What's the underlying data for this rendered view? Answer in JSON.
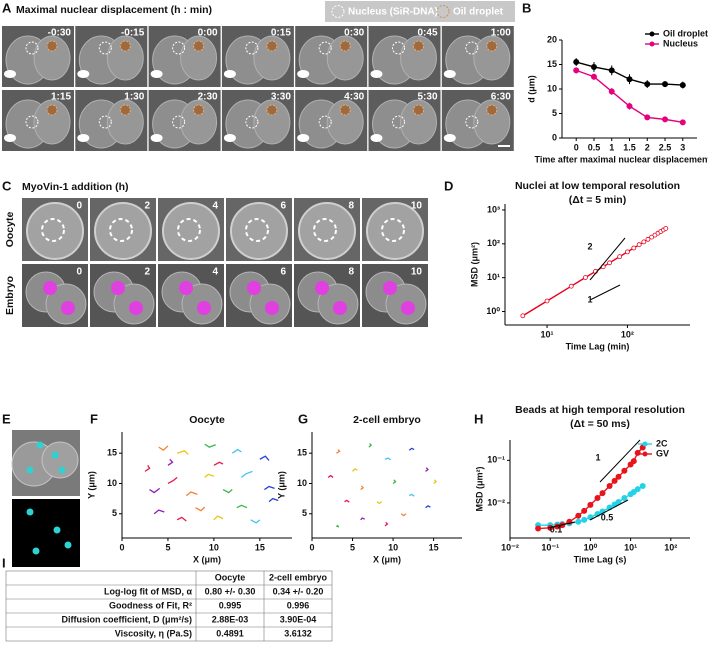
{
  "panels": {
    "A": {
      "label": "A",
      "title": "Maximal nuclear displacement (h : min)",
      "legend": [
        "Nucleus (SiR-DNA)",
        "Oil droplet"
      ],
      "times": [
        "-0:30",
        "-0:15",
        "0:00",
        "0:15",
        "0:30",
        "0:45",
        "1:00",
        "1:15",
        "1:30",
        "2:30",
        "3:30",
        "4:30",
        "5:30",
        "6:30"
      ]
    },
    "C": {
      "label": "C",
      "title": "MyoVin-1 addition (h)",
      "rows": [
        "Oocyte",
        "Embryo"
      ],
      "times": [
        "0",
        "2",
        "4",
        "6",
        "8",
        "10"
      ]
    },
    "E": {
      "label": "E"
    },
    "I": {
      "label": "I",
      "header": [
        "Oocyte",
        "2-cell embryo"
      ],
      "rows": [
        [
          "Log-log fit of MSD, α",
          "0.80 +/- 0.30",
          "0.34 +/- 0.20"
        ],
        [
          "Goodness of Fit, R²",
          "0.995",
          "0.996"
        ],
        [
          "Diffusion coefficient, D (μm²/s)",
          "2.88E-03",
          "3.90E-04"
        ],
        [
          "Viscosity, η (Pa.S)",
          "0.4891",
          "3.6132"
        ]
      ]
    }
  },
  "chart_data": [
    {
      "type": "line",
      "label": "B",
      "xlabel": "Time after maximal nuclear displacement (h)",
      "ylabel": "d (μm)",
      "x": [
        0,
        0.5,
        1,
        1.5,
        2,
        2.5,
        3
      ],
      "series": [
        {
          "name": "Oil droplet",
          "color": "#000000",
          "values": [
            15.5,
            14.5,
            13.8,
            12,
            11,
            11,
            10.8
          ],
          "errors": [
            0.8,
            1,
            1,
            1,
            0.8,
            0.6,
            0.7
          ]
        },
        {
          "name": "Nucleus",
          "color": "#e6007e",
          "values": [
            13.8,
            12.5,
            9.5,
            6.5,
            4.2,
            3.8,
            3.2
          ],
          "errors": [
            0.6,
            0.6,
            0.7,
            0.7,
            0.5,
            0.4,
            0.3
          ]
        }
      ],
      "xlim": [
        -0.4,
        3.4
      ],
      "ylim": [
        0,
        20
      ],
      "xticks": [
        0,
        0.5,
        1,
        1.5,
        2,
        2.5,
        3
      ],
      "yticks": [
        0,
        5,
        10,
        15,
        20
      ],
      "marker": "circle",
      "legend": "top-right"
    },
    {
      "type": "line",
      "label": "D",
      "title": "Nuclei at low temporal resolution",
      "subtitle": "(Δt = 5 min)",
      "xlabel": "Time Lag (min)",
      "ylabel": "MSD (μm²)",
      "xlog": true,
      "ylog": true,
      "x": [
        5,
        10,
        20,
        30,
        40,
        50,
        60,
        80,
        100,
        120,
        140,
        160,
        180,
        200,
        220,
        240,
        260,
        280,
        300
      ],
      "series": [
        {
          "color": "#e8001c",
          "values": [
            0.75,
            2.05,
            5.6,
            10.1,
            15.3,
            21.1,
            27.5,
            41.8,
            57.8,
            75.2,
            94.1,
            114,
            136,
            158,
            181,
            206,
            231,
            257,
            284
          ]
        }
      ],
      "xlim": [
        3,
        600
      ],
      "ylim": [
        0.4,
        1500
      ],
      "xticks": [
        {
          "value": 10,
          "label": "10¹"
        },
        {
          "value": 100,
          "label": "10²"
        }
      ],
      "yticks": [
        {
          "value": 1,
          "label": "10⁰"
        },
        {
          "value": 10,
          "label": "10¹"
        },
        {
          "value": 100,
          "label": "10²"
        },
        {
          "value": 1000,
          "label": "10³"
        }
      ],
      "marker": "open-circle",
      "annotations": [
        "2",
        "1"
      ]
    },
    {
      "type": "tracks",
      "label": "F",
      "title": "Oocyte",
      "xlabel": "X (μm)",
      "ylabel": "Y (μm)",
      "colors": [
        "#e6194b",
        "#f58231",
        "#e6c619",
        "#3cb44b",
        "#42c4f4",
        "#2343d8",
        "#911eb4"
      ],
      "series": [
        {
          "x": [
            2.5,
            3,
            2.8
          ],
          "y": [
            12,
            12.5,
            13
          ]
        },
        {
          "x": [
            4,
            4.5,
            5
          ],
          "y": [
            16,
            15.5,
            16.2
          ]
        },
        {
          "x": [
            6,
            6.8,
            7.2
          ],
          "y": [
            15,
            15.4,
            14.8
          ]
        },
        {
          "x": [
            9,
            9.5,
            10.2
          ],
          "y": [
            16.5,
            16,
            16.4
          ]
        },
        {
          "x": [
            12,
            12.6,
            13
          ],
          "y": [
            15,
            15.6,
            15.2
          ]
        },
        {
          "x": [
            15,
            15.6,
            16
          ],
          "y": [
            14,
            14.5,
            13.8
          ]
        },
        {
          "x": [
            3,
            3.5,
            4.1
          ],
          "y": [
            9,
            8.5,
            9.2
          ]
        },
        {
          "x": [
            5,
            5.6,
            6
          ],
          "y": [
            10,
            10.5,
            11
          ]
        },
        {
          "x": [
            7,
            7.5,
            8.2
          ],
          "y": [
            8,
            8.6,
            8.2
          ]
        },
        {
          "x": [
            9,
            9.4,
            10
          ],
          "y": [
            11,
            11.5,
            11.2
          ]
        },
        {
          "x": [
            11,
            11.6,
            12
          ],
          "y": [
            9,
            8.5,
            9
          ]
        },
        {
          "x": [
            13,
            13.5,
            14.2
          ],
          "y": [
            11,
            11.6,
            12
          ]
        },
        {
          "x": [
            15.5,
            16,
            16.6
          ],
          "y": [
            9,
            9.5,
            9.2
          ]
        },
        {
          "x": [
            3.5,
            4,
            4.6
          ],
          "y": [
            5,
            5.6,
            5.3
          ]
        },
        {
          "x": [
            6,
            6.5,
            7
          ],
          "y": [
            4,
            4.4,
            3.8
          ]
        },
        {
          "x": [
            8,
            8.6,
            9
          ],
          "y": [
            6,
            5.5,
            6.1
          ]
        },
        {
          "x": [
            10,
            10.4,
            11
          ],
          "y": [
            4,
            4.6,
            4.2
          ]
        },
        {
          "x": [
            12.5,
            13,
            13.6
          ],
          "y": [
            6,
            6.4,
            6
          ]
        },
        {
          "x": [
            14,
            14.6,
            15
          ],
          "y": [
            4,
            3.5,
            4
          ]
        },
        {
          "x": [
            16,
            16.4,
            17
          ],
          "y": [
            7,
            7.5,
            7.2
          ]
        },
        {
          "x": [
            5,
            5.5,
            5.2
          ],
          "y": [
            13,
            13.5,
            14
          ]
        },
        {
          "x": [
            10,
            10.6,
            11
          ],
          "y": [
            13,
            13.5,
            13.2
          ]
        }
      ],
      "xlim": [
        0,
        18.5
      ],
      "ylim": [
        1,
        18.5
      ],
      "xticks": [
        0,
        5,
        10,
        15
      ],
      "yticks": [
        5,
        10,
        15
      ]
    },
    {
      "type": "tracks",
      "label": "G",
      "title": "2-cell embryo",
      "xlabel": "X (μm)",
      "ylabel": "Y (μm)",
      "colors": [
        "#e6194b",
        "#f58231",
        "#e6c619",
        "#3cb44b",
        "#42c4f4",
        "#2343d8",
        "#911eb4"
      ],
      "series": [
        {
          "x": [
            2,
            2.3,
            2.6
          ],
          "y": [
            11,
            11.3,
            11
          ]
        },
        {
          "x": [
            3,
            3.4,
            3.2
          ],
          "y": [
            15,
            15.3,
            15.6
          ]
        },
        {
          "x": [
            5,
            5.3,
            5.6
          ],
          "y": [
            12,
            12.4,
            12.2
          ]
        },
        {
          "x": [
            7,
            7.3,
            7.1
          ],
          "y": [
            16,
            16.3,
            16.6
          ]
        },
        {
          "x": [
            9,
            9.4,
            9.7
          ],
          "y": [
            14,
            14.2,
            13.9
          ]
        },
        {
          "x": [
            12,
            12.3,
            12.6
          ],
          "y": [
            15.5,
            15.8,
            15.6
          ]
        },
        {
          "x": [
            14,
            14.3,
            14.1
          ],
          "y": [
            12,
            12.3,
            12.6
          ]
        },
        {
          "x": [
            4,
            4.3,
            4.6
          ],
          "y": [
            7,
            7.2,
            6.9
          ]
        },
        {
          "x": [
            6,
            6.3,
            6.1
          ],
          "y": [
            9,
            9.3,
            9.6
          ]
        },
        {
          "x": [
            8,
            8.3,
            8.6
          ],
          "y": [
            7,
            6.7,
            7
          ]
        },
        {
          "x": [
            10,
            10.3,
            10.1
          ],
          "y": [
            10,
            10.3,
            10.6
          ]
        },
        {
          "x": [
            12,
            12.3,
            12.6
          ],
          "y": [
            8,
            8.2,
            7.9
          ]
        },
        {
          "x": [
            14,
            14.3,
            14.6
          ],
          "y": [
            6,
            6.3,
            6.1
          ]
        },
        {
          "x": [
            6,
            6.2,
            6.5
          ],
          "y": [
            4,
            4.3,
            4.1
          ]
        },
        {
          "x": [
            9,
            9.3,
            9.1
          ],
          "y": [
            3,
            3.3,
            3.6
          ]
        },
        {
          "x": [
            11,
            11.3,
            11.6
          ],
          "y": [
            5,
            4.7,
            5
          ]
        },
        {
          "x": [
            15,
            15.3,
            15.1
          ],
          "y": [
            10,
            10.3,
            10.6
          ]
        },
        {
          "x": [
            3,
            3.3,
            3.1
          ],
          "y": [
            3,
            2.8,
            3.1
          ]
        }
      ],
      "xlim": [
        0,
        18.5
      ],
      "ylim": [
        1,
        18.5
      ],
      "xticks": [
        0,
        5,
        10,
        15
      ],
      "yticks": [
        5,
        10,
        15
      ]
    },
    {
      "type": "line",
      "label": "H",
      "title": "Beads at high temporal resolution",
      "subtitle": "(Δt = 50 ms)",
      "xlabel": "Time Lag (s)",
      "ylabel": "MSD (μm²)",
      "xlog": true,
      "ylog": true,
      "x": [
        0.05,
        0.1,
        0.15,
        0.2,
        0.3,
        0.5,
        0.7,
        1,
        1.5,
        2,
        3,
        4,
        5,
        7,
        10,
        12,
        15,
        20
      ],
      "series": [
        {
          "name": "2C",
          "color": "#22d3e6",
          "values": [
            0.003,
            0.003,
            0.0031,
            0.0032,
            0.0033,
            0.0036,
            0.004,
            0.0046,
            0.0055,
            0.0063,
            0.0078,
            0.0092,
            0.0105,
            0.013,
            0.016,
            0.018,
            0.021,
            0.025
          ]
        },
        {
          "name": "GV",
          "color": "#e8141c",
          "values": [
            0.0025,
            0.0026,
            0.0028,
            0.003,
            0.0036,
            0.005,
            0.0065,
            0.009,
            0.013,
            0.017,
            0.025,
            0.033,
            0.041,
            0.057,
            0.08,
            0.096,
            0.15,
            0.2
          ]
        }
      ],
      "xlim": [
        0.01,
        300
      ],
      "ylim": [
        0.0015,
        0.3
      ],
      "xticks": [
        {
          "value": 0.01,
          "label": "10⁻²"
        },
        {
          "value": 0.1,
          "label": "10⁻¹"
        },
        {
          "value": 1,
          "label": "10⁰"
        },
        {
          "value": 10,
          "label": "10¹"
        },
        {
          "value": 100,
          "label": "10²"
        }
      ],
      "yticks": [
        {
          "value": 0.01,
          "label": "10⁻²"
        },
        {
          "value": 0.1,
          "label": "10⁻¹"
        }
      ],
      "marker": "circle",
      "legend": "top-right",
      "annotations": [
        "1",
        "0.5",
        "0.1"
      ]
    }
  ]
}
